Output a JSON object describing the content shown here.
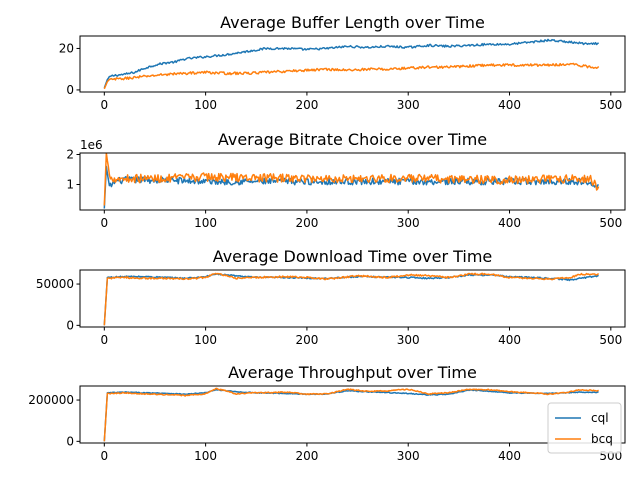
{
  "chart_data": [
    {
      "type": "line",
      "title": "Average Buffer Length over Time",
      "xlim": [
        -24,
        514
      ],
      "ylim": [
        -1,
        26
      ],
      "xticks": [
        0,
        100,
        200,
        300,
        400,
        500
      ],
      "yticks": [
        0,
        20
      ],
      "yticklabels": [
        "0",
        "20"
      ],
      "offset_text": "",
      "series": [
        {
          "name": "cql",
          "color": "#1f77b4",
          "points": [
            [
              0,
              1
            ],
            [
              3,
              5
            ],
            [
              6,
              6.5
            ],
            [
              10,
              7
            ],
            [
              20,
              7.5
            ],
            [
              30,
              8.5
            ],
            [
              40,
              10.5
            ],
            [
              50,
              12
            ],
            [
              60,
              13
            ],
            [
              70,
              13.5
            ],
            [
              80,
              15
            ],
            [
              90,
              15.5
            ],
            [
              100,
              16
            ],
            [
              120,
              17
            ],
            [
              140,
              18.5
            ],
            [
              160,
              20
            ],
            [
              180,
              20
            ],
            [
              200,
              19.5
            ],
            [
              220,
              20
            ],
            [
              240,
              21
            ],
            [
              260,
              20.5
            ],
            [
              280,
              21
            ],
            [
              300,
              20.5
            ],
            [
              320,
              21.5
            ],
            [
              340,
              21
            ],
            [
              360,
              21.5
            ],
            [
              380,
              22
            ],
            [
              400,
              22
            ],
            [
              420,
              23
            ],
            [
              440,
              24
            ],
            [
              460,
              23
            ],
            [
              480,
              22
            ],
            [
              488,
              22.5
            ]
          ],
          "noise": 0.5
        },
        {
          "name": "bcq",
          "color": "#ff7f0e",
          "points": [
            [
              0,
              0.5
            ],
            [
              3,
              4
            ],
            [
              6,
              5
            ],
            [
              20,
              5.5
            ],
            [
              40,
              6.5
            ],
            [
              60,
              7.5
            ],
            [
              80,
              8
            ],
            [
              100,
              8.5
            ],
            [
              120,
              8
            ],
            [
              140,
              8
            ],
            [
              160,
              8.5
            ],
            [
              180,
              9
            ],
            [
              200,
              9.5
            ],
            [
              220,
              10
            ],
            [
              240,
              9.5
            ],
            [
              260,
              10
            ],
            [
              280,
              10
            ],
            [
              300,
              10.5
            ],
            [
              320,
              11
            ],
            [
              340,
              11
            ],
            [
              360,
              11.5
            ],
            [
              380,
              12
            ],
            [
              400,
              12
            ],
            [
              420,
              12
            ],
            [
              440,
              12
            ],
            [
              460,
              12.5
            ],
            [
              480,
              11
            ],
            [
              488,
              11
            ]
          ],
          "noise": 0.6
        }
      ]
    },
    {
      "type": "line",
      "title": "Average Bitrate Choice over Time",
      "xlim": [
        -24,
        514
      ],
      "ylim": [
        150000,
        2050000
      ],
      "xticks": [
        0,
        100,
        200,
        300,
        400,
        500
      ],
      "yticks": [
        1000000,
        2000000
      ],
      "yticklabels": [
        "1",
        "2"
      ],
      "offset_text": "1e6",
      "series": [
        {
          "name": "cql",
          "color": "#1f77b4",
          "points": [
            [
              0,
              200000
            ],
            [
              2,
              1600000
            ],
            [
              5,
              900000
            ],
            [
              10,
              1100000
            ],
            [
              20,
              1150000
            ],
            [
              60,
              1150000
            ],
            [
              100,
              1100000
            ],
            [
              200,
              1100000
            ],
            [
              300,
              1100000
            ],
            [
              400,
              1100000
            ],
            [
              480,
              1100000
            ],
            [
              488,
              950000
            ]
          ],
          "noise": 110000
        },
        {
          "name": "bcq",
          "color": "#ff7f0e",
          "points": [
            [
              0,
              300000
            ],
            [
              2,
              2050000
            ],
            [
              5,
              1300000
            ],
            [
              10,
              1200000
            ],
            [
              60,
              1200000
            ],
            [
              100,
              1250000
            ],
            [
              200,
              1200000
            ],
            [
              300,
              1200000
            ],
            [
              400,
              1150000
            ],
            [
              480,
              1200000
            ],
            [
              488,
              850000
            ]
          ],
          "noise": 140000
        }
      ]
    },
    {
      "type": "line",
      "title": "Average Download Time over Time",
      "xlim": [
        -24,
        514
      ],
      "ylim": [
        -2000,
        67000
      ],
      "xticks": [
        0,
        100,
        200,
        300,
        400,
        500
      ],
      "yticks": [
        0,
        50000
      ],
      "yticklabels": [
        "0",
        "50000"
      ],
      "offset_text": "",
      "series": [
        {
          "name": "cql",
          "color": "#1f77b4",
          "points": [
            [
              0,
              0
            ],
            [
              3,
              58000
            ],
            [
              20,
              59000
            ],
            [
              40,
              59000
            ],
            [
              60,
              58000
            ],
            [
              80,
              57000
            ],
            [
              100,
              59000
            ],
            [
              110,
              62000
            ],
            [
              130,
              60000
            ],
            [
              150,
              58000
            ],
            [
              180,
              58000
            ],
            [
              200,
              57000
            ],
            [
              220,
              57000
            ],
            [
              250,
              59000
            ],
            [
              300,
              58000
            ],
            [
              320,
              57000
            ],
            [
              340,
              58000
            ],
            [
              360,
              61000
            ],
            [
              380,
              61000
            ],
            [
              400,
              59000
            ],
            [
              420,
              58000
            ],
            [
              440,
              57000
            ],
            [
              460,
              55000
            ],
            [
              470,
              57000
            ],
            [
              488,
              60000
            ]
          ],
          "noise": 800
        },
        {
          "name": "bcq",
          "color": "#ff7f0e",
          "points": [
            [
              0,
              0
            ],
            [
              3,
              57000
            ],
            [
              20,
              58000
            ],
            [
              40,
              57000
            ],
            [
              60,
              57000
            ],
            [
              80,
              56000
            ],
            [
              100,
              58000
            ],
            [
              110,
              63000
            ],
            [
              120,
              60000
            ],
            [
              130,
              57000
            ],
            [
              150,
              58000
            ],
            [
              180,
              59000
            ],
            [
              200,
              58000
            ],
            [
              220,
              56000
            ],
            [
              250,
              60000
            ],
            [
              280,
              58000
            ],
            [
              300,
              61000
            ],
            [
              320,
              60000
            ],
            [
              340,
              58000
            ],
            [
              360,
              62000
            ],
            [
              380,
              62000
            ],
            [
              400,
              58000
            ],
            [
              420,
              57000
            ],
            [
              440,
              56000
            ],
            [
              460,
              58000
            ],
            [
              470,
              62000
            ],
            [
              488,
              62000
            ]
          ],
          "noise": 1000
        }
      ]
    },
    {
      "type": "line",
      "title": "Average Throughput over Time",
      "xlim": [
        -24,
        514
      ],
      "ylim": [
        -8000,
        268000
      ],
      "xticks": [
        0,
        100,
        200,
        300,
        400,
        500
      ],
      "yticks": [
        0,
        200000
      ],
      "yticklabels": [
        "0",
        "200000"
      ],
      "offset_text": "",
      "legend": {
        "placement": "lower-right",
        "entries": [
          "cql",
          "bcq"
        ]
      },
      "series": [
        {
          "name": "cql",
          "color": "#1f77b4",
          "points": [
            [
              0,
              0
            ],
            [
              3,
              235000
            ],
            [
              20,
              238000
            ],
            [
              40,
              235000
            ],
            [
              60,
              233000
            ],
            [
              80,
              228000
            ],
            [
              100,
              235000
            ],
            [
              110,
              250000
            ],
            [
              130,
              240000
            ],
            [
              150,
              235000
            ],
            [
              180,
              232000
            ],
            [
              200,
              228000
            ],
            [
              220,
              230000
            ],
            [
              240,
              245000
            ],
            [
              260,
              240000
            ],
            [
              300,
              232000
            ],
            [
              320,
              225000
            ],
            [
              340,
              228000
            ],
            [
              360,
              248000
            ],
            [
              380,
              243000
            ],
            [
              400,
              235000
            ],
            [
              440,
              232000
            ],
            [
              470,
              238000
            ],
            [
              488,
              238000
            ]
          ],
          "noise": 2000
        },
        {
          "name": "bcq",
          "color": "#ff7f0e",
          "points": [
            [
              0,
              0
            ],
            [
              3,
              232000
            ],
            [
              20,
              235000
            ],
            [
              40,
              230000
            ],
            [
              60,
              226000
            ],
            [
              80,
              222000
            ],
            [
              100,
              230000
            ],
            [
              110,
              255000
            ],
            [
              120,
              245000
            ],
            [
              130,
              230000
            ],
            [
              150,
              235000
            ],
            [
              180,
              238000
            ],
            [
              200,
              228000
            ],
            [
              220,
              230000
            ],
            [
              240,
              252000
            ],
            [
              260,
              242000
            ],
            [
              280,
              245000
            ],
            [
              300,
              252000
            ],
            [
              320,
              230000
            ],
            [
              340,
              235000
            ],
            [
              360,
              252000
            ],
            [
              380,
              250000
            ],
            [
              400,
              240000
            ],
            [
              420,
              236000
            ],
            [
              440,
              228000
            ],
            [
              460,
              240000
            ],
            [
              470,
              250000
            ],
            [
              488,
              245000
            ]
          ],
          "noise": 2500
        }
      ]
    }
  ]
}
